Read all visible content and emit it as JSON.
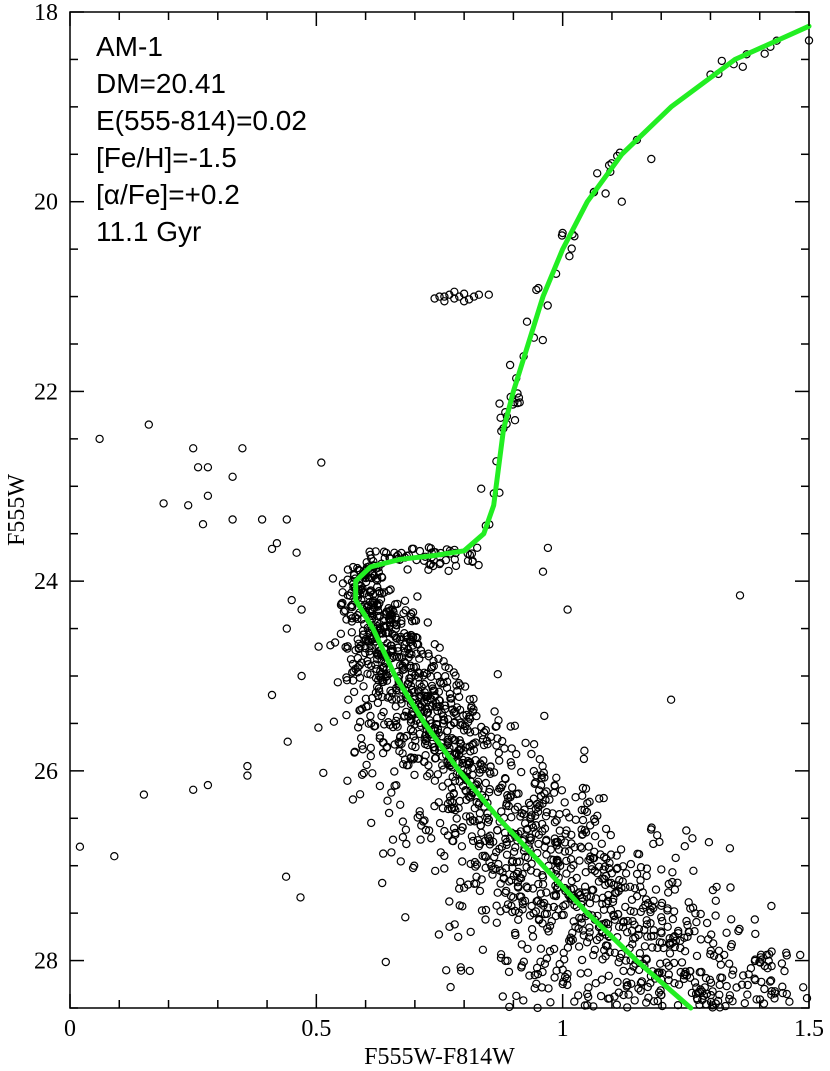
{
  "chart_data": {
    "type": "scatter",
    "title": "",
    "xlabel": "F555W-F814W",
    "ylabel": "F555W",
    "xlim": [
      0,
      1.5
    ],
    "ylim": [
      28.5,
      18
    ],
    "y_inverted": true,
    "x_ticks": [
      {
        "value": 0,
        "label": "0"
      },
      {
        "value": 0.5,
        "label": "0.5"
      },
      {
        "value": 1,
        "label": "1"
      },
      {
        "value": 1.5,
        "label": "1.5"
      }
    ],
    "x_minor_step": 0.1,
    "y_ticks": [
      {
        "value": 18,
        "label": "18"
      },
      {
        "value": 20,
        "label": "20"
      },
      {
        "value": 22,
        "label": "22"
      },
      {
        "value": 24,
        "label": "24"
      },
      {
        "value": 26,
        "label": "26"
      },
      {
        "value": 28,
        "label": "28"
      }
    ],
    "y_minor_step": 0.5,
    "grid": false,
    "annotations": [
      "AM-1",
      "DM=20.41",
      "E(555-814)=0.02",
      "[Fe/H]=-1.5",
      "[α/Fe]=+0.2",
      "11.1 Gyr"
    ],
    "isochrone": {
      "color": "#22ee22",
      "points": [
        [
          1.26,
          28.5
        ],
        [
          1.15,
          28.0
        ],
        [
          1.05,
          27.5
        ],
        [
          0.96,
          27.0
        ],
        [
          0.87,
          26.5
        ],
        [
          0.79,
          26.0
        ],
        [
          0.72,
          25.5
        ],
        [
          0.66,
          25.0
        ],
        [
          0.615,
          24.5
        ],
        [
          0.58,
          24.2
        ],
        [
          0.58,
          24.0
        ],
        [
          0.61,
          23.85
        ],
        [
          0.67,
          23.77
        ],
        [
          0.74,
          23.73
        ],
        [
          0.8,
          23.68
        ],
        [
          0.84,
          23.5
        ],
        [
          0.86,
          23.2
        ],
        [
          0.87,
          22.8
        ],
        [
          0.88,
          22.4
        ],
        [
          0.9,
          22.0
        ],
        [
          0.93,
          21.5
        ],
        [
          0.96,
          21.0
        ],
        [
          1.0,
          20.5
        ],
        [
          1.05,
          20.0
        ],
        [
          1.12,
          19.5
        ],
        [
          1.22,
          19.0
        ],
        [
          1.35,
          18.5
        ],
        [
          1.5,
          18.15
        ]
      ]
    },
    "stars": {
      "marker": "open-circle",
      "color": "#000000",
      "ms_turnoff_band": {
        "mag_range": [
          23.8,
          28.5
        ],
        "count": 1700
      },
      "subgiant_branch": {
        "mag_range": [
          23.5,
          24.0
        ],
        "count": 60
      },
      "red_giant_branch": {
        "mag_range": [
          18.3,
          23.5
        ],
        "count": 55
      },
      "horizontal_branch": [
        [
          0.75,
          21.0
        ],
        [
          0.76,
          21.05
        ],
        [
          0.77,
          20.98
        ],
        [
          0.78,
          21.02
        ],
        [
          0.79,
          21.0
        ],
        [
          0.8,
          20.97
        ],
        [
          0.81,
          21.03
        ],
        [
          0.82,
          21.0
        ],
        [
          0.74,
          21.02
        ],
        [
          0.83,
          20.98
        ],
        [
          0.85,
          20.98
        ],
        [
          0.76,
          21.0
        ],
        [
          0.78,
          20.95
        ],
        [
          0.8,
          21.05
        ]
      ],
      "blue_stragglers_and_field": [
        [
          0.06,
          22.5
        ],
        [
          0.16,
          22.35
        ],
        [
          0.25,
          22.6
        ],
        [
          0.26,
          22.8
        ],
        [
          0.28,
          22.8
        ],
        [
          0.35,
          22.6
        ],
        [
          0.33,
          22.9
        ],
        [
          0.19,
          23.18
        ],
        [
          0.24,
          23.2
        ],
        [
          0.28,
          23.1
        ],
        [
          0.27,
          23.4
        ],
        [
          0.33,
          23.35
        ],
        [
          0.39,
          23.35
        ],
        [
          0.44,
          23.35
        ],
        [
          0.42,
          23.6
        ],
        [
          0.41,
          23.66
        ],
        [
          0.46,
          23.7
        ],
        [
          0.51,
          22.75
        ],
        [
          0.45,
          24.2
        ],
        [
          0.47,
          24.3
        ],
        [
          0.44,
          24.5
        ],
        [
          0.41,
          25.2
        ],
        [
          0.47,
          25.0
        ],
        [
          1.01,
          24.3
        ],
        [
          1.36,
          24.15
        ],
        [
          1.22,
          25.25
        ],
        [
          0.96,
          23.9
        ],
        [
          0.97,
          23.65
        ],
        [
          0.02,
          26.8
        ],
        [
          0.15,
          26.25
        ],
        [
          0.25,
          26.2
        ],
        [
          0.28,
          26.15
        ],
        [
          0.36,
          25.95
        ],
        [
          0.36,
          26.05
        ],
        [
          0.09,
          26.9
        ],
        [
          1.12,
          20.0
        ],
        [
          1.07,
          19.7
        ],
        [
          1.18,
          19.55
        ],
        [
          1.5,
          18.3
        ]
      ]
    }
  }
}
